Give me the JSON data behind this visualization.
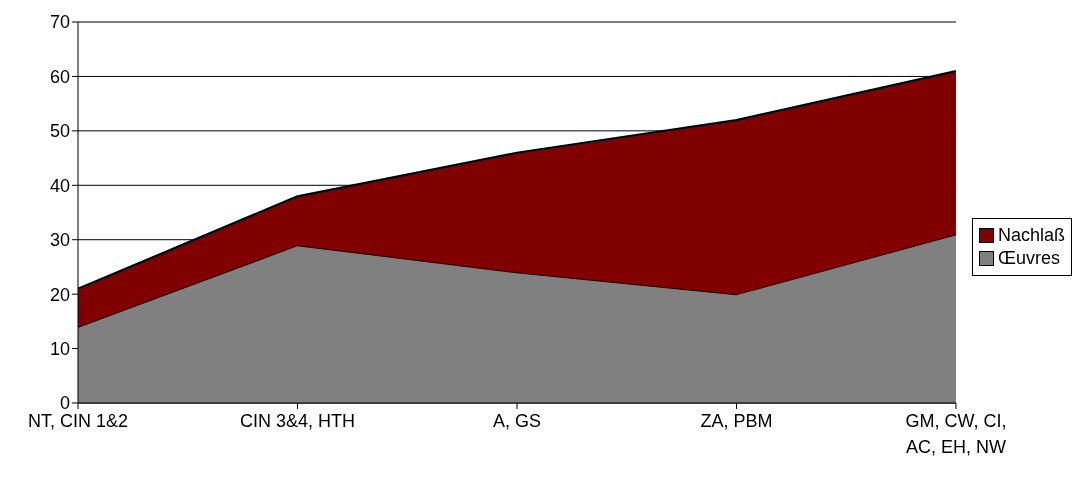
{
  "chart_data": {
    "type": "area",
    "stacked": true,
    "categories": [
      "NT, CIN 1&2",
      "CIN 3&4, HTH",
      "A, GS",
      "ZA, PBM",
      "GM, CW, CI, AC, EH, NW"
    ],
    "series": [
      {
        "name": "Œuvres",
        "color": "#808080",
        "values": [
          14,
          29,
          24,
          20,
          31
        ]
      },
      {
        "name": "Nachlaß",
        "color": "#800000",
        "values": [
          7,
          9,
          22,
          32,
          30
        ]
      }
    ],
    "ylim": [
      0,
      70
    ],
    "yticks": [
      0,
      10,
      20,
      30,
      40,
      50,
      60,
      70
    ],
    "grid": "y",
    "legend": "right"
  }
}
